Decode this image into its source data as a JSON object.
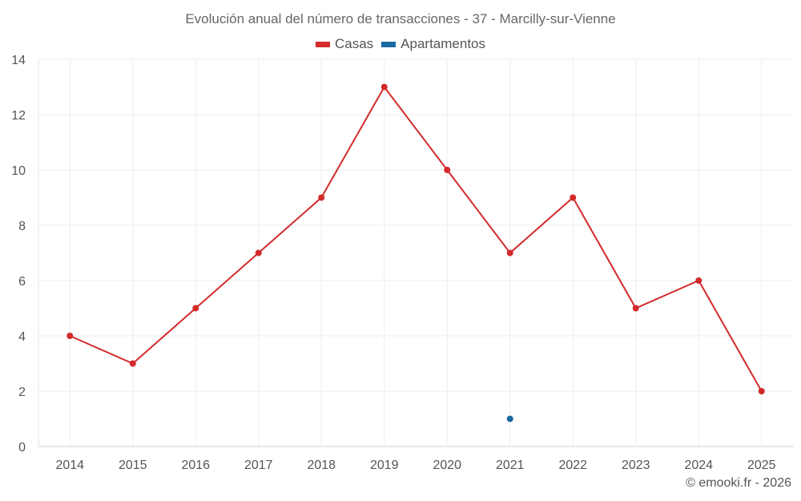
{
  "chart_data": {
    "type": "line",
    "title": "Evolución anual del número de transacciones - 37 - Marcilly-sur-Vienne",
    "categories": [
      "2014",
      "2015",
      "2016",
      "2017",
      "2018",
      "2019",
      "2020",
      "2021",
      "2022",
      "2023",
      "2024",
      "2025"
    ],
    "series": [
      {
        "name": "Casas",
        "color": "#d32a2a",
        "values": [
          4,
          3,
          5,
          7,
          9,
          13,
          10,
          7,
          9,
          5,
          6,
          2
        ]
      },
      {
        "name": "Apartamentos",
        "color": "#1a6aa2",
        "values": [
          null,
          null,
          null,
          null,
          null,
          null,
          null,
          1,
          null,
          null,
          null,
          null
        ]
      }
    ],
    "ylim": [
      0,
      14
    ],
    "yticks": [
      0,
      2,
      4,
      6,
      8,
      10,
      12,
      14
    ],
    "grid": true,
    "legend_position": "top-center"
  },
  "footer": "© emooki.fr - 2026"
}
